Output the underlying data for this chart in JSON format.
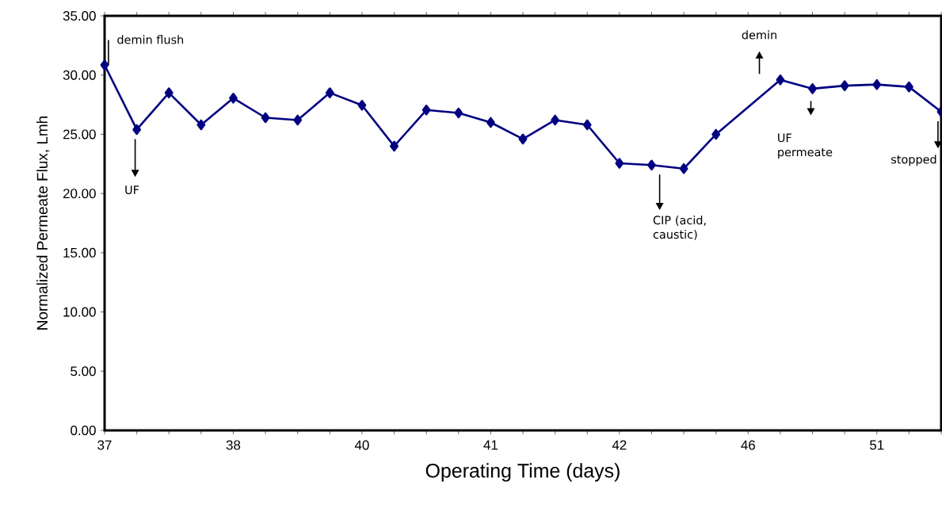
{
  "chart_data": {
    "type": "line",
    "xlabel": "Operating Time (days)",
    "ylabel": "Normalized Permeate Flux, Lmh",
    "categories": [
      "37",
      null,
      null,
      null,
      "38",
      null,
      null,
      null,
      "40",
      null,
      null,
      null,
      "41",
      null,
      null,
      null,
      "42",
      null,
      null,
      null,
      "46",
      null,
      null,
      null,
      "51",
      null,
      null
    ],
    "series": [
      {
        "color": "#000080",
        "values": [
          30.85,
          25.4,
          28.5,
          25.8,
          28.05,
          26.4,
          26.2,
          28.5,
          27.45,
          24.0,
          27.05,
          26.8,
          26.0,
          24.6,
          26.2,
          25.8,
          22.55,
          22.4,
          22.1,
          25.0,
          null,
          29.6,
          28.85,
          29.1,
          29.2,
          29.0,
          26.9
        ]
      }
    ],
    "ylim": [
      0,
      35
    ],
    "yticks": [
      {
        "value": 0,
        "label": "0.00"
      },
      {
        "value": 5,
        "label": "5.00"
      },
      {
        "value": 10,
        "label": "10.00"
      },
      {
        "value": 15,
        "label": "15.00"
      },
      {
        "value": 20,
        "label": "20.00"
      },
      {
        "value": 25,
        "label": "25.00"
      },
      {
        "value": 30,
        "label": "30.00"
      },
      {
        "value": 35,
        "label": "35.00"
      }
    ],
    "marker": "diamond",
    "line_style": "solid",
    "grid": false,
    "annotations": [
      {
        "text": "demin flush",
        "x": "37",
        "y": 30.85
      },
      "UF",
      "CIP (acid, caustic)",
      "demin",
      "UF permeate",
      "stopped"
    ]
  }
}
